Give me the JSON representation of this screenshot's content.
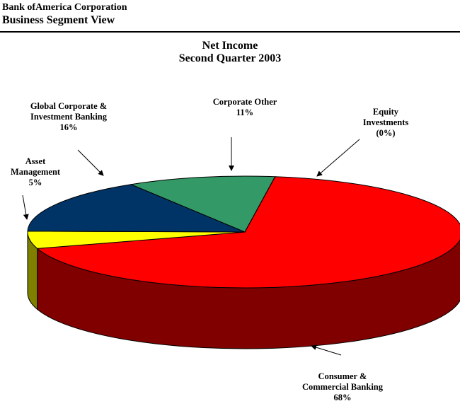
{
  "header": {
    "company": "Bank ofAmerica Corporation",
    "view": "Business Segment View"
  },
  "chart_data": {
    "type": "pie",
    "title": [
      "Net Income",
      "Second Quarter 2003"
    ],
    "three_d": true,
    "slices": [
      {
        "name": "Consumer & Commercial Banking",
        "label_lines": [
          "Consumer &",
          "Commercial Banking"
        ],
        "pct_label": "68%",
        "value": 68,
        "color": "#ff0000",
        "side_color": "#800000"
      },
      {
        "name": "Asset Management",
        "label_lines": [
          "Asset",
          "Management"
        ],
        "pct_label": "5%",
        "value": 5,
        "color": "#ffff00",
        "side_color": "#808000"
      },
      {
        "name": "Global Corporate & Investment Banking",
        "label_lines": [
          "Global Corporate &",
          "Investment Banking"
        ],
        "pct_label": "16%",
        "value": 16,
        "color": "#003366",
        "side_color": "#001a33"
      },
      {
        "name": "Corporate Other",
        "label_lines": [
          "Corporate Other"
        ],
        "pct_label": "11%",
        "value": 11,
        "color": "#339966",
        "side_color": "#1a4d33"
      },
      {
        "name": "Equity Investments",
        "label_lines": [
          "Equity",
          "Investments"
        ],
        "pct_label": "(0%)",
        "value": 0,
        "color": "#ff0000",
        "side_color": "#800000"
      }
    ]
  }
}
